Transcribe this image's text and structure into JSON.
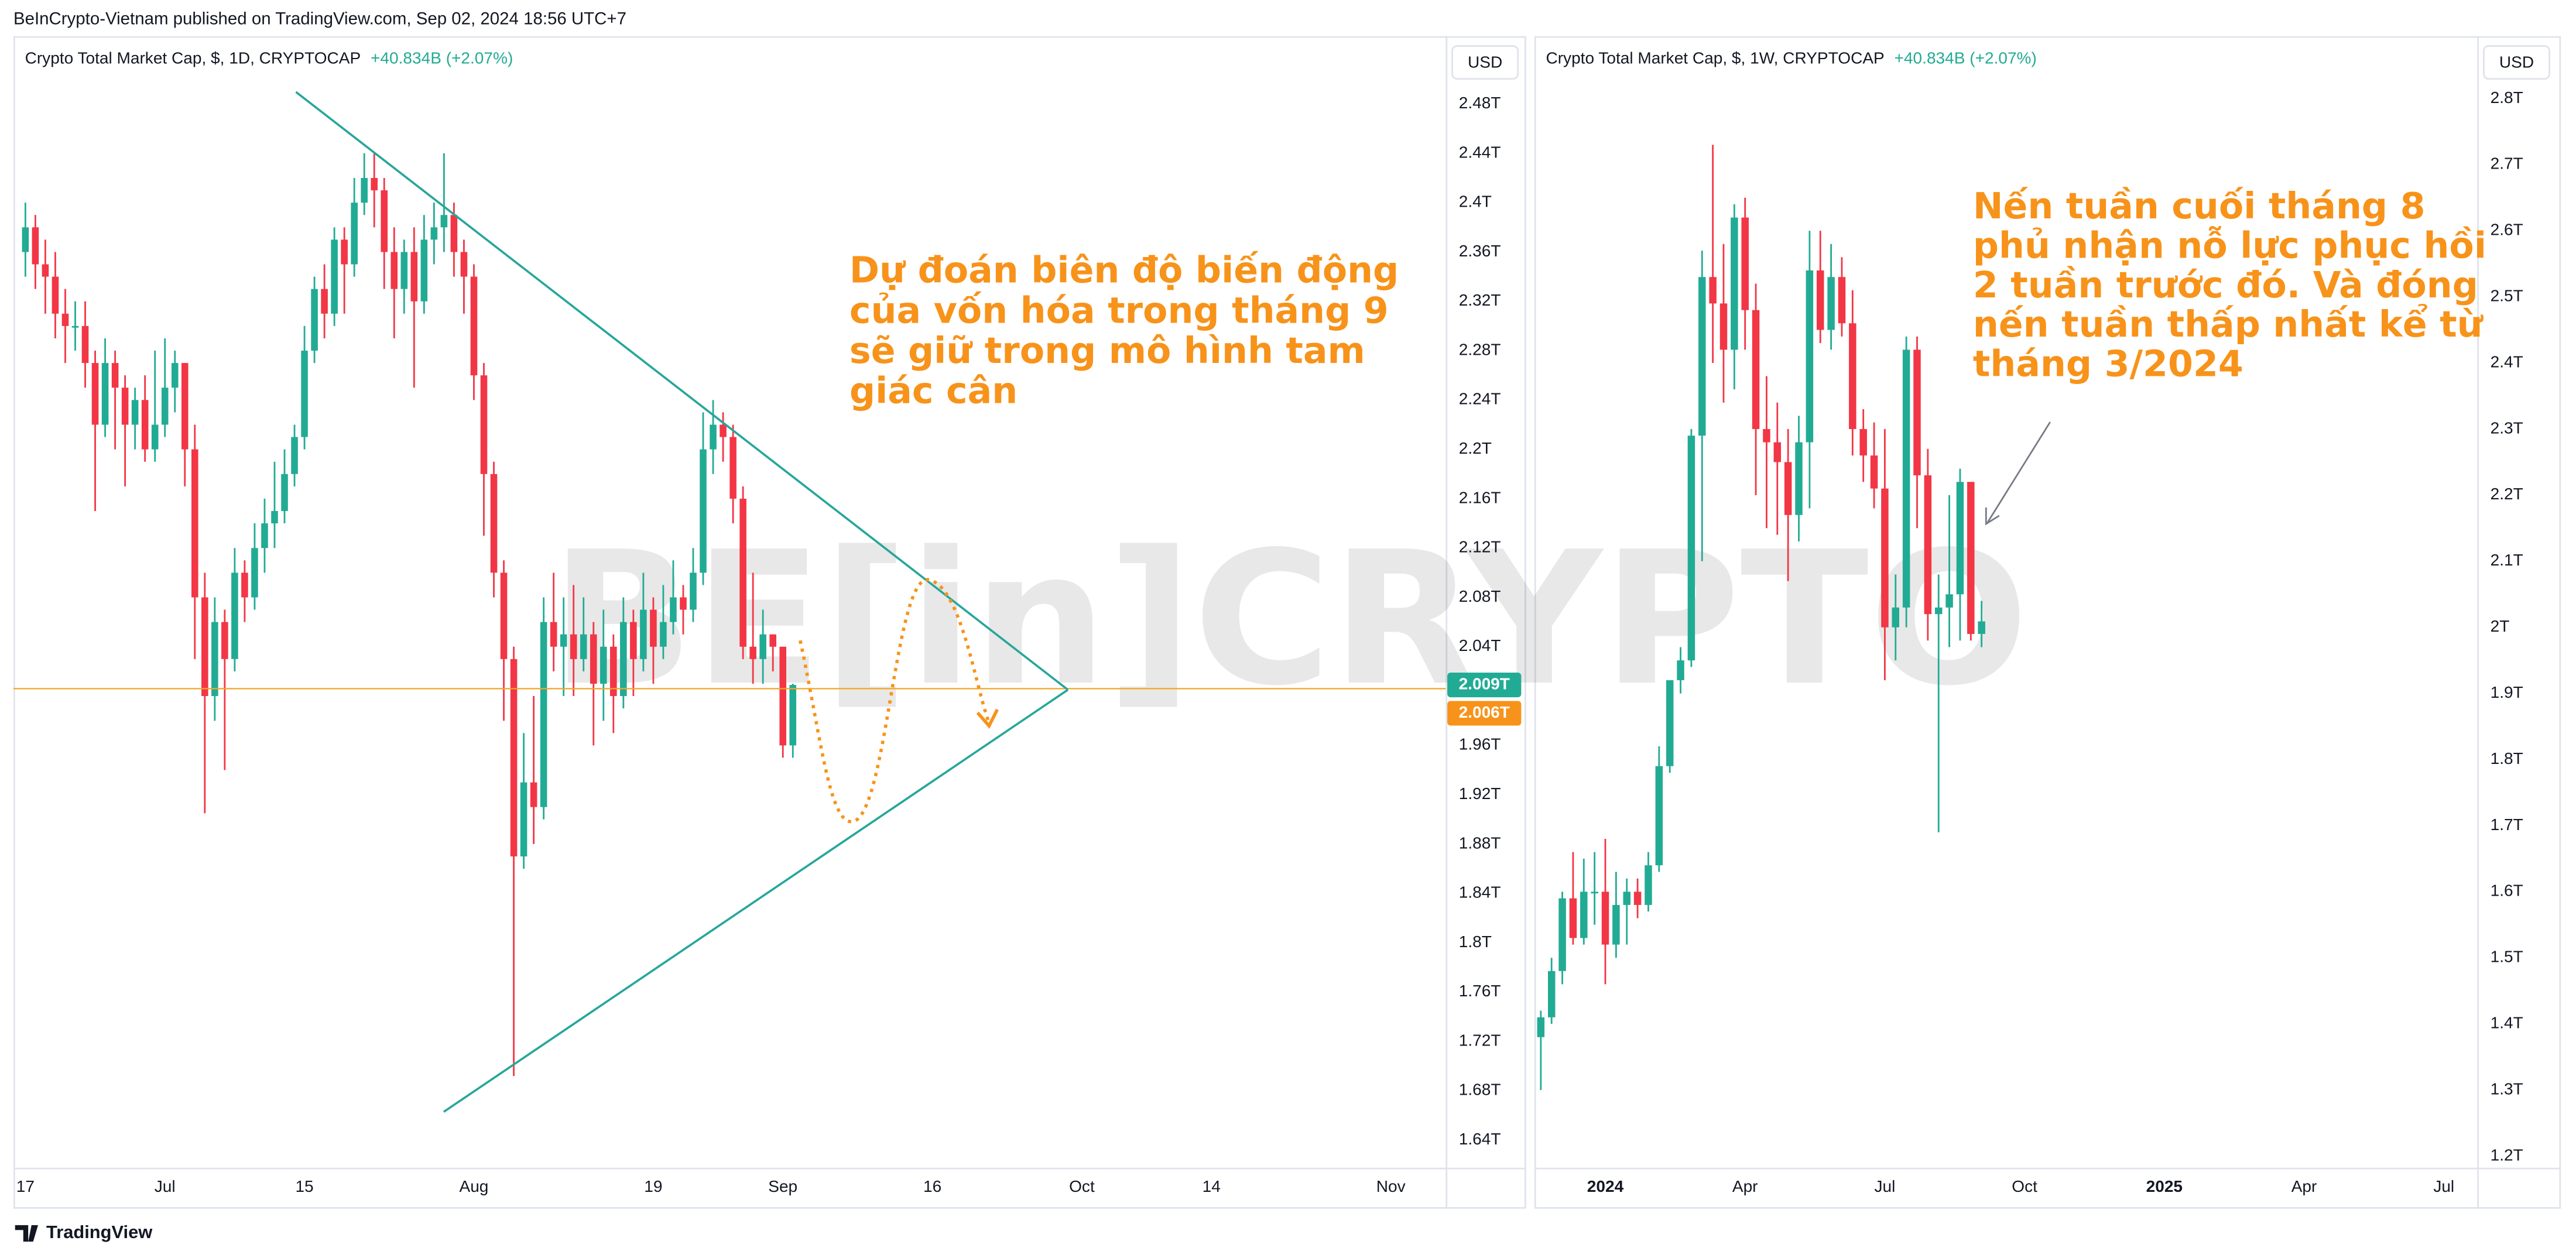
{
  "header": "BeInCrypto-Vietnam published on TradingView.com, Sep 02, 2024 18:56 UTC+7",
  "footer": "TradingView",
  "watermark": "BE[in]CRYPTO",
  "chart_data": [
    {
      "type": "candlestick",
      "title": "Crypto Total Market Cap, $, 1D, CRYPTOCAP",
      "change": "+40.834B (+2.07%)",
      "currency": "USD",
      "up_color": "#22ab94",
      "down_color": "#f23645",
      "annotation": [
        "Dự đoán biên độ biến động",
        "của vốn hóa trong tháng 9",
        "sẽ giữ trong mô hình tam",
        "giác cân"
      ],
      "last_price": {
        "value": 2.009,
        "label": "2.009T"
      },
      "line_price": {
        "value": 2.006,
        "label": "2.006T"
      },
      "x": [
        0,
        1,
        2,
        3,
        4,
        5,
        6,
        7,
        8,
        9,
        10,
        11,
        12,
        13,
        14,
        15,
        16,
        17,
        18,
        19,
        20,
        21,
        22,
        23,
        24,
        25,
        26,
        27,
        28,
        29,
        30,
        31,
        32,
        33,
        34,
        35,
        36,
        37,
        38,
        39,
        40,
        41,
        42,
        43,
        44,
        45,
        46,
        47,
        48,
        49,
        50,
        51,
        52,
        53,
        54,
        55,
        56,
        57,
        58,
        59,
        60,
        61,
        62,
        63,
        64,
        65,
        66,
        67,
        68,
        69,
        70,
        71,
        72,
        73,
        74,
        75,
        76,
        77
      ],
      "open": [
        2.36,
        2.38,
        2.35,
        2.34,
        2.31,
        2.3,
        2.3,
        2.27,
        2.22,
        2.27,
        2.25,
        2.22,
        2.24,
        2.2,
        2.22,
        2.25,
        2.27,
        2.2,
        2.08,
        2.0,
        2.06,
        2.03,
        2.1,
        2.08,
        2.12,
        2.14,
        2.15,
        2.18,
        2.21,
        2.28,
        2.33,
        2.31,
        2.37,
        2.35,
        2.4,
        2.42,
        2.41,
        2.36,
        2.33,
        2.36,
        2.32,
        2.37,
        2.38,
        2.39,
        2.36,
        2.34,
        2.26,
        2.18,
        2.1,
        2.03,
        1.87,
        1.93,
        1.91,
        2.06,
        2.04,
        2.05,
        2.03,
        2.05,
        2.01,
        2.04,
        2.0,
        2.06,
        2.03,
        2.07,
        2.04,
        2.06,
        2.08,
        2.07,
        2.1,
        2.2,
        2.22,
        2.21,
        2.16,
        2.04,
        2.03,
        2.05,
        2.04,
        1.96
      ],
      "high": [
        2.4,
        2.39,
        2.37,
        2.36,
        2.33,
        2.32,
        2.32,
        2.28,
        2.29,
        2.28,
        2.26,
        2.25,
        2.26,
        2.28,
        2.29,
        2.28,
        2.27,
        2.22,
        2.1,
        2.08,
        2.07,
        2.12,
        2.11,
        2.14,
        2.16,
        2.19,
        2.2,
        2.22,
        2.3,
        2.34,
        2.35,
        2.38,
        2.38,
        2.42,
        2.44,
        2.44,
        2.42,
        2.38,
        2.37,
        2.38,
        2.39,
        2.4,
        2.44,
        2.4,
        2.37,
        2.35,
        2.27,
        2.19,
        2.11,
        2.04,
        1.97,
        2.0,
        2.08,
        2.1,
        2.08,
        2.09,
        2.08,
        2.06,
        2.07,
        2.05,
        2.08,
        2.07,
        2.1,
        2.08,
        2.09,
        2.11,
        2.09,
        2.12,
        2.23,
        2.24,
        2.23,
        2.22,
        2.17,
        2.1,
        2.07,
        2.05,
        2.04,
        2.01
      ],
      "low": [
        2.34,
        2.33,
        2.31,
        2.29,
        2.27,
        2.28,
        2.25,
        2.15,
        2.21,
        2.2,
        2.17,
        2.2,
        2.19,
        2.19,
        2.21,
        2.23,
        2.17,
        2.03,
        1.905,
        1.98,
        1.94,
        2.02,
        2.06,
        2.07,
        2.1,
        2.12,
        2.14,
        2.17,
        2.2,
        2.27,
        2.29,
        2.3,
        2.31,
        2.34,
        2.39,
        2.38,
        2.33,
        2.29,
        2.31,
        2.25,
        2.31,
        2.35,
        2.36,
        2.34,
        2.31,
        2.24,
        2.13,
        2.08,
        1.98,
        1.692,
        1.86,
        1.88,
        1.9,
        2.02,
        2.0,
        2.0,
        2.02,
        1.96,
        1.98,
        1.97,
        1.99,
        2.0,
        2.02,
        2.01,
        2.03,
        2.05,
        2.05,
        2.06,
        2.09,
        2.18,
        2.19,
        2.14,
        2.03,
        2.01,
        2.01,
        2.02,
        1.95,
        1.95
      ],
      "close": [
        2.38,
        2.35,
        2.34,
        2.31,
        2.3,
        2.3,
        2.27,
        2.22,
        2.27,
        2.25,
        2.22,
        2.24,
        2.2,
        2.22,
        2.25,
        2.27,
        2.2,
        2.08,
        2.0,
        2.06,
        2.03,
        2.1,
        2.08,
        2.12,
        2.14,
        2.15,
        2.18,
        2.21,
        2.28,
        2.33,
        2.31,
        2.37,
        2.35,
        2.4,
        2.42,
        2.41,
        2.36,
        2.33,
        2.36,
        2.32,
        2.37,
        2.38,
        2.39,
        2.36,
        2.34,
        2.26,
        2.18,
        2.1,
        2.03,
        1.87,
        1.93,
        1.91,
        2.06,
        2.04,
        2.05,
        2.03,
        2.05,
        2.01,
        2.04,
        2.0,
        2.06,
        2.03,
        2.07,
        2.04,
        2.06,
        2.08,
        2.07,
        2.1,
        2.2,
        2.22,
        2.21,
        2.16,
        2.04,
        2.03,
        2.05,
        2.04,
        1.96,
        2.009
      ],
      "xlim": [
        -1.2,
        142.5
      ],
      "xticks": [
        {
          "value": 0,
          "label": "17"
        },
        {
          "value": 14,
          "label": "Jul"
        },
        {
          "value": 28,
          "label": "15"
        },
        {
          "value": 45,
          "label": "Aug"
        },
        {
          "value": 63,
          "label": "19"
        },
        {
          "value": 76,
          "label": "Sep"
        },
        {
          "value": 91,
          "label": "16"
        },
        {
          "value": 106,
          "label": "Oct"
        },
        {
          "value": 119,
          "label": "14"
        },
        {
          "value": 137,
          "label": "Nov"
        }
      ],
      "ylim": [
        1.619,
        2.531
      ],
      "yticks": [
        {
          "value": 1.64,
          "label": "1.64T"
        },
        {
          "value": 1.68,
          "label": "1.68T"
        },
        {
          "value": 1.72,
          "label": "1.72T"
        },
        {
          "value": 1.76,
          "label": "1.76T"
        },
        {
          "value": 1.8,
          "label": "1.8T"
        },
        {
          "value": 1.84,
          "label": "1.84T"
        },
        {
          "value": 1.88,
          "label": "1.88T"
        },
        {
          "value": 1.92,
          "label": "1.92T"
        },
        {
          "value": 1.96,
          "label": "1.96T"
        },
        {
          "value": 2.04,
          "label": "2.04T"
        },
        {
          "value": 2.08,
          "label": "2.08T"
        },
        {
          "value": 2.12,
          "label": "2.12T"
        },
        {
          "value": 2.16,
          "label": "2.16T"
        },
        {
          "value": 2.2,
          "label": "2.2T"
        },
        {
          "value": 2.24,
          "label": "2.24T"
        },
        {
          "value": 2.28,
          "label": "2.28T"
        },
        {
          "value": 2.32,
          "label": "2.32T"
        },
        {
          "value": 2.36,
          "label": "2.36T"
        },
        {
          "value": 2.4,
          "label": "2.4T"
        },
        {
          "value": 2.44,
          "label": "2.44T"
        },
        {
          "value": 2.48,
          "label": "2.48T"
        }
      ],
      "grid": false
    },
    {
      "type": "candlestick",
      "title": "Crypto Total Market Cap, $, 1W, CRYPTOCAP",
      "change": "+40.834B (+2.07%)",
      "currency": "USD",
      "up_color": "#22ab94",
      "down_color": "#f23645",
      "annotation": [
        "Nến tuần cuối tháng 8",
        "phủ nhận nỗ lực phục hồi",
        "2 tuần trước đó. Và đóng",
        "nến tuần thấp nhất kể từ",
        "tháng 3/2024"
      ],
      "x": [
        -6,
        -5,
        -4,
        -3,
        -2,
        -1,
        0,
        1,
        2,
        3,
        4,
        5,
        6,
        7,
        8,
        9,
        10,
        11,
        12,
        13,
        14,
        15,
        16,
        17,
        18,
        19,
        20,
        21,
        22,
        23,
        24,
        25,
        26,
        27,
        28,
        29,
        30,
        31,
        32,
        33,
        34,
        35
      ],
      "open": [
        1.38,
        1.41,
        1.48,
        1.59,
        1.53,
        1.6,
        1.6,
        1.52,
        1.58,
        1.6,
        1.58,
        1.64,
        1.79,
        1.92,
        1.95,
        2.29,
        2.53,
        2.49,
        2.42,
        2.62,
        2.48,
        2.3,
        2.28,
        2.25,
        2.17,
        2.28,
        2.54,
        2.45,
        2.53,
        2.46,
        2.3,
        2.26,
        2.21,
        2.0,
        2.03,
        2.42,
        2.23,
        2.02,
        2.03,
        2.05,
        2.22,
        1.99
      ],
      "high": [
        1.42,
        1.5,
        1.6,
        1.66,
        1.65,
        1.66,
        1.68,
        1.63,
        1.62,
        1.62,
        1.66,
        1.82,
        1.92,
        1.97,
        2.3,
        2.57,
        2.73,
        2.58,
        2.64,
        2.65,
        2.52,
        2.38,
        2.34,
        2.3,
        2.32,
        2.6,
        2.6,
        2.58,
        2.56,
        2.51,
        2.33,
        2.31,
        2.3,
        2.08,
        2.44,
        2.44,
        2.27,
        2.08,
        2.2,
        2.24,
        2.22,
        2.04
      ],
      "low": [
        1.3,
        1.4,
        1.46,
        1.52,
        1.52,
        1.55,
        1.46,
        1.5,
        1.52,
        1.56,
        1.57,
        1.63,
        1.78,
        1.9,
        1.94,
        2.1,
        2.4,
        2.34,
        2.36,
        2.42,
        2.2,
        2.15,
        2.14,
        2.07,
        2.13,
        2.18,
        2.43,
        2.42,
        2.44,
        2.26,
        2.22,
        2.18,
        1.92,
        1.95,
        2.0,
        2.15,
        1.98,
        1.69,
        1.97,
        1.98,
        1.98,
        1.97
      ],
      "close": [
        1.41,
        1.48,
        1.59,
        1.53,
        1.6,
        1.6,
        1.52,
        1.58,
        1.6,
        1.58,
        1.64,
        1.79,
        1.92,
        1.95,
        2.29,
        2.53,
        2.49,
        2.42,
        2.62,
        2.48,
        2.3,
        2.28,
        2.25,
        2.17,
        2.28,
        2.54,
        2.45,
        2.53,
        2.46,
        2.3,
        2.26,
        2.21,
        2.0,
        2.03,
        2.42,
        2.23,
        2.02,
        2.03,
        2.05,
        2.22,
        1.99,
        2.009
      ],
      "xlim": [
        -6.6,
        81.1
      ],
      "xticks": [
        {
          "value": 0,
          "label": "2024"
        },
        {
          "value": 13,
          "label": "Apr"
        },
        {
          "value": 26,
          "label": "Jul"
        },
        {
          "value": 39,
          "label": "Oct"
        },
        {
          "value": 52,
          "label": "2025"
        },
        {
          "value": 65,
          "label": "Apr"
        },
        {
          "value": 78,
          "label": "Jul"
        }
      ],
      "ylim": [
        1.185,
        2.887
      ],
      "yticks": [
        {
          "value": 1.2,
          "label": "1.2T"
        },
        {
          "value": 1.3,
          "label": "1.3T"
        },
        {
          "value": 1.4,
          "label": "1.4T"
        },
        {
          "value": 1.5,
          "label": "1.5T"
        },
        {
          "value": 1.6,
          "label": "1.6T"
        },
        {
          "value": 1.7,
          "label": "1.7T"
        },
        {
          "value": 1.8,
          "label": "1.8T"
        },
        {
          "value": 1.9,
          "label": "1.9T"
        },
        {
          "value": 2.0,
          "label": "2T"
        },
        {
          "value": 2.1,
          "label": "2.1T"
        },
        {
          "value": 2.2,
          "label": "2.2T"
        },
        {
          "value": 2.3,
          "label": "2.3T"
        },
        {
          "value": 2.4,
          "label": "2.4T"
        },
        {
          "value": 2.5,
          "label": "2.5T"
        },
        {
          "value": 2.6,
          "label": "2.6T"
        },
        {
          "value": 2.7,
          "label": "2.7T"
        },
        {
          "value": 2.8,
          "label": "2.8T"
        }
      ],
      "grid": false
    }
  ]
}
